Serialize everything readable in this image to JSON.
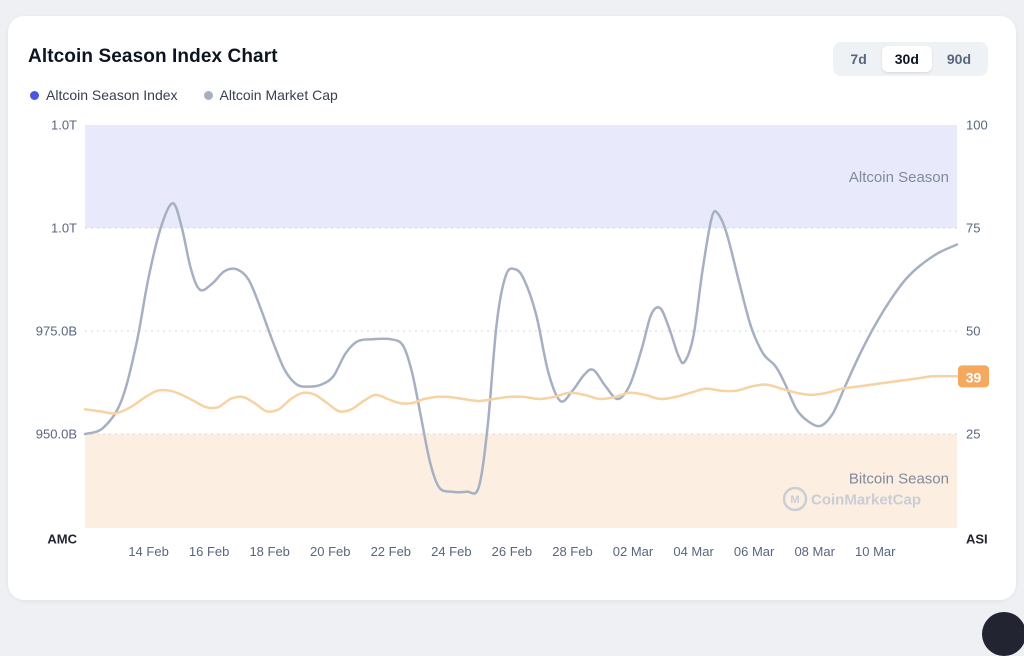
{
  "header": {
    "title": "Altcoin Season Index Chart",
    "ranges": [
      {
        "label": "7d",
        "active": false
      },
      {
        "label": "30d",
        "active": true
      },
      {
        "label": "90d",
        "active": false
      }
    ]
  },
  "legend": [
    {
      "label": "Altcoin Season Index",
      "color": "#4b55e1"
    },
    {
      "label": "Altcoin Market Cap",
      "color": "#a6b0c3"
    }
  ],
  "chart_data": {
    "type": "line",
    "title": "Altcoin Season Index Chart",
    "x_range": [
      0,
      28.8
    ],
    "x_unit": "days (0 = 12 Feb)",
    "x_ticks": [
      {
        "label": "14 Feb",
        "day": 2.1
      },
      {
        "label": "16 Feb",
        "day": 4.1
      },
      {
        "label": "18 Feb",
        "day": 6.1
      },
      {
        "label": "20 Feb",
        "day": 8.1
      },
      {
        "label": "22 Feb",
        "day": 10.1
      },
      {
        "label": "24 Feb",
        "day": 12.1
      },
      {
        "label": "26 Feb",
        "day": 14.1
      },
      {
        "label": "28 Feb",
        "day": 16.1
      },
      {
        "label": "02 Mar",
        "day": 18.1
      },
      {
        "label": "04 Mar",
        "day": 20.1
      },
      {
        "label": "06 Mar",
        "day": 22.1
      },
      {
        "label": "08 Mar",
        "day": 24.1
      },
      {
        "label": "10 Mar",
        "day": 26.1
      }
    ],
    "left_axis": {
      "name": "AMC",
      "unit": "USD (billions)",
      "top_value": 1025,
      "labels": [
        {
          "text": "1.0T",
          "value": 1025
        },
        {
          "text": "1.0T",
          "value": 1000
        },
        {
          "text": "975.0B",
          "value": 975
        },
        {
          "text": "950.0B",
          "value": 950
        }
      ]
    },
    "right_axis": {
      "name": "ASI",
      "range": [
        0,
        100
      ],
      "top_value": 100,
      "labels": [
        {
          "text": "100",
          "value": 100
        },
        {
          "text": "75",
          "value": 75
        },
        {
          "text": "50",
          "value": 50
        },
        {
          "text": "25",
          "value": 25
        }
      ]
    },
    "bands": [
      {
        "label": "Altcoin Season",
        "from": 75,
        "to": 100,
        "color": "#e8eafb",
        "label_color": "#808a9d"
      },
      {
        "label": "Bitcoin Season",
        "from": 0,
        "to": 25,
        "color": "#fcefe1",
        "label_color": "#808a9d"
      }
    ],
    "grid_values": [
      75,
      50,
      25
    ],
    "series": [
      {
        "name": "Altcoin Market Cap",
        "axis": "left",
        "color": "#a6b0c3",
        "points": [
          [
            0,
            950
          ],
          [
            0.6,
            951.5
          ],
          [
            1.2,
            958
          ],
          [
            1.7,
            972
          ],
          [
            2.1,
            988
          ],
          [
            2.5,
            1000
          ],
          [
            2.9,
            1006
          ],
          [
            3.2,
            1000
          ],
          [
            3.5,
            990
          ],
          [
            3.8,
            985
          ],
          [
            4.2,
            986.5
          ],
          [
            4.6,
            989.5
          ],
          [
            5,
            990
          ],
          [
            5.4,
            987.5
          ],
          [
            5.8,
            980.5
          ],
          [
            6.2,
            972.5
          ],
          [
            6.6,
            965.5
          ],
          [
            7,
            962
          ],
          [
            7.4,
            961.5
          ],
          [
            7.8,
            962
          ],
          [
            8.2,
            964
          ],
          [
            8.6,
            969.5
          ],
          [
            9,
            972.5
          ],
          [
            9.5,
            973
          ],
          [
            10.1,
            973
          ],
          [
            10.5,
            971.5
          ],
          [
            10.8,
            965
          ],
          [
            11.1,
            954
          ],
          [
            11.4,
            943
          ],
          [
            11.7,
            937
          ],
          [
            12.1,
            936
          ],
          [
            12.6,
            936
          ],
          [
            13,
            937
          ],
          [
            13.3,
            952
          ],
          [
            13.6,
            977
          ],
          [
            13.9,
            988.5
          ],
          [
            14.2,
            990
          ],
          [
            14.5,
            987.5
          ],
          [
            14.9,
            979
          ],
          [
            15.3,
            965
          ],
          [
            15.7,
            958
          ],
          [
            16.1,
            960.5
          ],
          [
            16.5,
            964.5
          ],
          [
            16.8,
            965.5
          ],
          [
            17.2,
            961.5
          ],
          [
            17.6,
            958.5
          ],
          [
            18,
            962
          ],
          [
            18.4,
            971
          ],
          [
            18.7,
            979
          ],
          [
            19,
            980.5
          ],
          [
            19.3,
            975.5
          ],
          [
            19.6,
            969
          ],
          [
            19.8,
            967.5
          ],
          [
            20.1,
            974
          ],
          [
            20.4,
            990
          ],
          [
            20.7,
            1002.5
          ],
          [
            20.9,
            1003.5
          ],
          [
            21.2,
            998.5
          ],
          [
            21.6,
            987
          ],
          [
            22,
            976
          ],
          [
            22.4,
            969.5
          ],
          [
            22.8,
            966.5
          ],
          [
            23.1,
            962.5
          ],
          [
            23.5,
            956
          ],
          [
            23.9,
            953
          ],
          [
            24.3,
            952
          ],
          [
            24.7,
            955
          ],
          [
            25.1,
            961.5
          ],
          [
            25.6,
            969.5
          ],
          [
            26.1,
            976.5
          ],
          [
            26.6,
            982.5
          ],
          [
            27.1,
            987.5
          ],
          [
            27.6,
            991
          ],
          [
            28.2,
            994
          ],
          [
            28.8,
            996
          ]
        ]
      },
      {
        "name": "Altcoin Season Index",
        "axis": "right",
        "color": "#f7d2a2",
        "points": [
          [
            0,
            31
          ],
          [
            0.5,
            30.5
          ],
          [
            1,
            30
          ],
          [
            1.5,
            31.5
          ],
          [
            2,
            34
          ],
          [
            2.4,
            35.5
          ],
          [
            2.8,
            35.5
          ],
          [
            3.2,
            34.5
          ],
          [
            3.6,
            33
          ],
          [
            4,
            31.5
          ],
          [
            4.4,
            31.5
          ],
          [
            4.8,
            33.5
          ],
          [
            5.2,
            34
          ],
          [
            5.6,
            32.5
          ],
          [
            6,
            30.5
          ],
          [
            6.4,
            31
          ],
          [
            6.8,
            33.5
          ],
          [
            7.2,
            35
          ],
          [
            7.6,
            34.5
          ],
          [
            8,
            32.5
          ],
          [
            8.4,
            30.5
          ],
          [
            8.8,
            31
          ],
          [
            9.2,
            33
          ],
          [
            9.6,
            34.5
          ],
          [
            10,
            33.5
          ],
          [
            10.4,
            32.5
          ],
          [
            10.8,
            32.5
          ],
          [
            11.2,
            33.5
          ],
          [
            11.6,
            34
          ],
          [
            12,
            34
          ],
          [
            12.5,
            33.5
          ],
          [
            13,
            33
          ],
          [
            13.5,
            33.5
          ],
          [
            14,
            34
          ],
          [
            14.5,
            34
          ],
          [
            15,
            33.5
          ],
          [
            15.5,
            34
          ],
          [
            16,
            35
          ],
          [
            16.5,
            34.5
          ],
          [
            17,
            33.5
          ],
          [
            17.5,
            34
          ],
          [
            18,
            35
          ],
          [
            18.5,
            34.5
          ],
          [
            19,
            33.5
          ],
          [
            19.5,
            34
          ],
          [
            20,
            35
          ],
          [
            20.5,
            36
          ],
          [
            21,
            35.5
          ],
          [
            21.5,
            35.5
          ],
          [
            22,
            36.5
          ],
          [
            22.5,
            37
          ],
          [
            23,
            36
          ],
          [
            23.5,
            35
          ],
          [
            24,
            34.5
          ],
          [
            24.5,
            35
          ],
          [
            25,
            36
          ],
          [
            25.5,
            36.5
          ],
          [
            26,
            37
          ],
          [
            26.5,
            37.5
          ],
          [
            27,
            38
          ],
          [
            27.5,
            38.5
          ],
          [
            28,
            39
          ],
          [
            28.8,
            39
          ]
        ]
      }
    ],
    "current_value": {
      "label": "39",
      "value": 39,
      "badge_color": "#f3a960",
      "text_color": "#ffffff"
    },
    "watermark": {
      "text": "CoinMarketCap",
      "logo_letter": "M",
      "color": "#c8cdd6"
    },
    "colors": {
      "axis_text": "#58667e",
      "axis_name": "#222531",
      "grid": "#cfd6de"
    },
    "legend_position": "top-left",
    "grid": "dotted-horizontal"
  }
}
